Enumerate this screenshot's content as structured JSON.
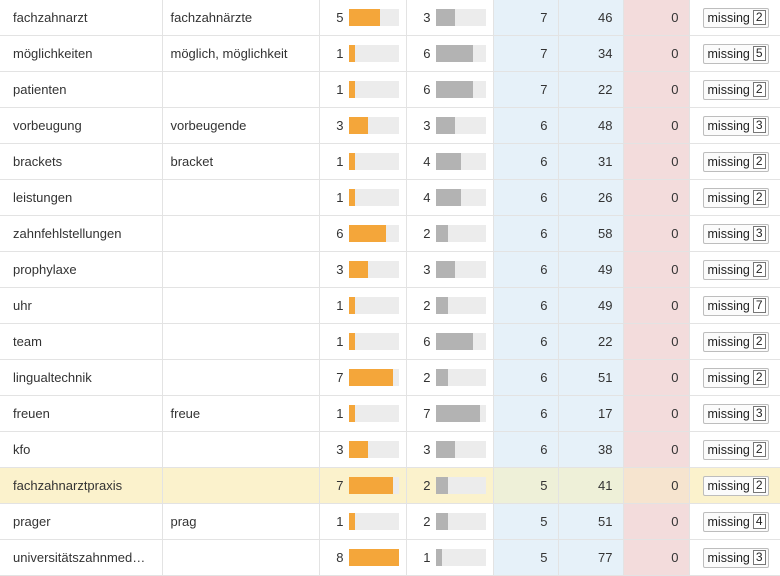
{
  "colors": {
    "orange_bar": "#f4a63a",
    "gray_bar": "#b3b3b3",
    "blue_col": "#e6f1f9",
    "red_col": "#f3dcdc",
    "highlight_row": "#fbf2cc"
  },
  "rows": [
    {
      "keyword": "fachzahnarzt",
      "variants": "fachzahnärzte",
      "a": 5,
      "b": 3,
      "c": 7,
      "d": 46,
      "e": 0,
      "status": "missing",
      "count": 2,
      "highlight": false
    },
    {
      "keyword": "möglichkeiten",
      "variants": "möglich, möglichkeit",
      "a": 1,
      "b": 6,
      "c": 7,
      "d": 34,
      "e": 0,
      "status": "missing",
      "count": 5,
      "highlight": false
    },
    {
      "keyword": "patienten",
      "variants": "",
      "a": 1,
      "b": 6,
      "c": 7,
      "d": 22,
      "e": 0,
      "status": "missing",
      "count": 2,
      "highlight": false
    },
    {
      "keyword": "vorbeugung",
      "variants": "vorbeugende",
      "a": 3,
      "b": 3,
      "c": 6,
      "d": 48,
      "e": 0,
      "status": "missing",
      "count": 3,
      "highlight": false
    },
    {
      "keyword": "brackets",
      "variants": "bracket",
      "a": 1,
      "b": 4,
      "c": 6,
      "d": 31,
      "e": 0,
      "status": "missing",
      "count": 2,
      "highlight": false
    },
    {
      "keyword": "leistungen",
      "variants": "",
      "a": 1,
      "b": 4,
      "c": 6,
      "d": 26,
      "e": 0,
      "status": "missing",
      "count": 2,
      "highlight": false
    },
    {
      "keyword": "zahnfehlstellungen",
      "variants": "",
      "a": 6,
      "b": 2,
      "c": 6,
      "d": 58,
      "e": 0,
      "status": "missing",
      "count": 3,
      "highlight": false
    },
    {
      "keyword": "prophylaxe",
      "variants": "",
      "a": 3,
      "b": 3,
      "c": 6,
      "d": 49,
      "e": 0,
      "status": "missing",
      "count": 2,
      "highlight": false
    },
    {
      "keyword": "uhr",
      "variants": "",
      "a": 1,
      "b": 2,
      "c": 6,
      "d": 49,
      "e": 0,
      "status": "missing",
      "count": 7,
      "highlight": false
    },
    {
      "keyword": "team",
      "variants": "",
      "a": 1,
      "b": 6,
      "c": 6,
      "d": 22,
      "e": 0,
      "status": "missing",
      "count": 2,
      "highlight": false
    },
    {
      "keyword": "lingualtechnik",
      "variants": "",
      "a": 7,
      "b": 2,
      "c": 6,
      "d": 51,
      "e": 0,
      "status": "missing",
      "count": 2,
      "highlight": false
    },
    {
      "keyword": "freuen",
      "variants": "freue",
      "a": 1,
      "b": 7,
      "c": 6,
      "d": 17,
      "e": 0,
      "status": "missing",
      "count": 3,
      "highlight": false
    },
    {
      "keyword": "kfo",
      "variants": "",
      "a": 3,
      "b": 3,
      "c": 6,
      "d": 38,
      "e": 0,
      "status": "missing",
      "count": 2,
      "highlight": false
    },
    {
      "keyword": "fachzahnarztpraxis",
      "variants": "",
      "a": 7,
      "b": 2,
      "c": 5,
      "d": 41,
      "e": 0,
      "status": "missing",
      "count": 2,
      "highlight": true
    },
    {
      "keyword": "prager",
      "variants": "prag",
      "a": 1,
      "b": 2,
      "c": 5,
      "d": 51,
      "e": 0,
      "status": "missing",
      "count": 4,
      "highlight": false
    },
    {
      "keyword": "universitätszahnmed…",
      "variants": "",
      "a": 8,
      "b": 1,
      "c": 5,
      "d": 77,
      "e": 0,
      "status": "missing",
      "count": 3,
      "highlight": false
    }
  ]
}
